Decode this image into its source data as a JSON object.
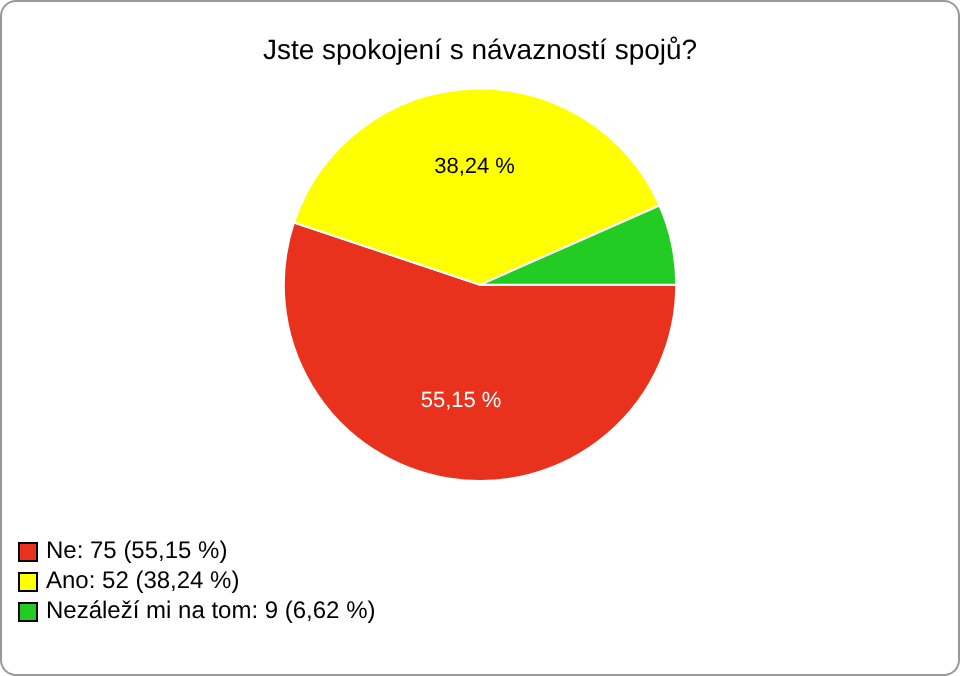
{
  "chart_data": {
    "type": "pie",
    "title": "Jste spokojení s návazností spojů?",
    "categories": [
      "Ne: 75 (55,15 %)",
      "Ano: 52 (38,24 %)",
      "Nezáleží mi na tom: 9 (6,62 %)"
    ],
    "values": [
      55.15,
      38.24,
      6.62
    ],
    "colors": [
      "#e8321e",
      "#ffff00",
      "#22cc22"
    ],
    "value_labels": [
      "55,15 %",
      "38,24 %",
      null
    ],
    "legend": "bottom left"
  }
}
